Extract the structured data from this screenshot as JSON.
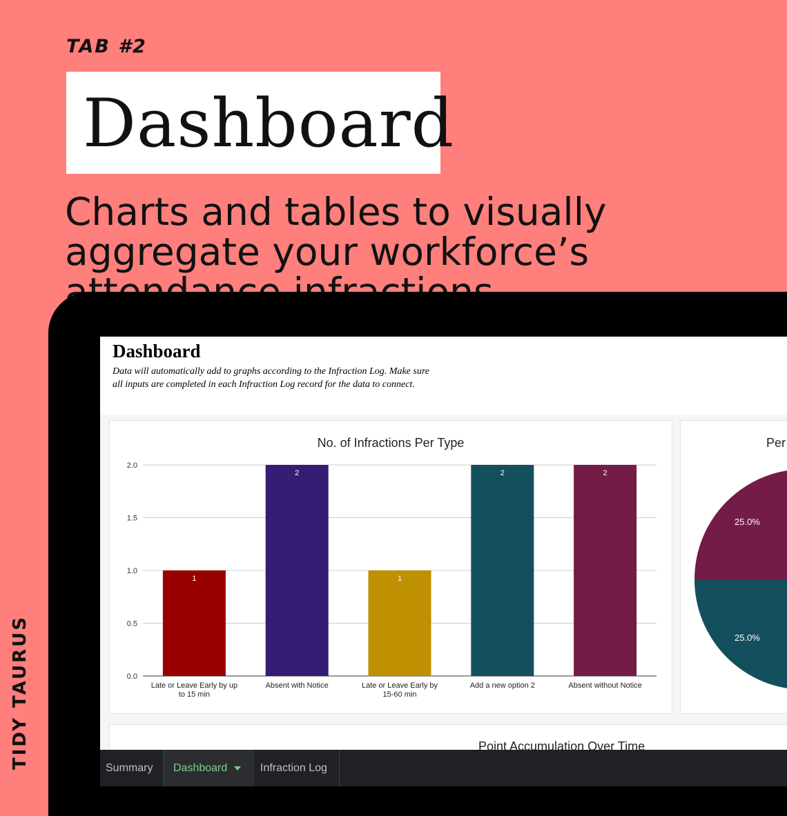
{
  "hero": {
    "tab_label": "TAB #2",
    "title": "Dashboard",
    "subtitle": "Charts and tables to visually aggregate your workforce’s attendance infractions",
    "brand": "TIDY TAURUS"
  },
  "sheet": {
    "title": "Dashboard",
    "description": "Data will automatically add to graphs according to the Infraction Log. Make sure all inputs are completed in each Infraction Log record for the data to connect.",
    "pie_title_partial": "Per",
    "bottom_chart_title": "Point Accumulation Over Time"
  },
  "chart_data": [
    {
      "type": "bar",
      "title": "No. of Infractions Per Type",
      "categories": [
        "Late or Leave Early by up to 15 min",
        "Absent with Notice",
        "Late or Leave Early by 15-60 min",
        "Add a new option 2",
        "Absent without Notice"
      ],
      "category_lines": [
        [
          "Late or Leave Early by up",
          "to 15 min"
        ],
        [
          "Absent with Notice"
        ],
        [
          "Late or Leave Early by",
          "15-60 min"
        ],
        [
          "Add a new option 2"
        ],
        [
          "Absent without Notice"
        ]
      ],
      "values": [
        1,
        2,
        1,
        2,
        2
      ],
      "data_labels": [
        "1",
        "2",
        "1",
        "2",
        "2"
      ],
      "colors": [
        "#990000",
        "#351c75",
        "#bf9000",
        "#134f5c",
        "#741b47"
      ],
      "y_ticks": [
        "0.0",
        "0.5",
        "1.0",
        "1.5",
        "2.0"
      ],
      "ylim": [
        0,
        2
      ],
      "grid": true
    },
    {
      "type": "pie",
      "title": "Per",
      "slices": [
        {
          "label": "25.0%",
          "value": 25.0,
          "color": "#741b47"
        },
        {
          "label": "25.0%",
          "value": 25.0,
          "color": "#134f5c"
        }
      ]
    }
  ],
  "tabs": [
    {
      "label": "Summary"
    },
    {
      "label": "Dashboard"
    },
    {
      "label": "Infraction Log"
    }
  ]
}
